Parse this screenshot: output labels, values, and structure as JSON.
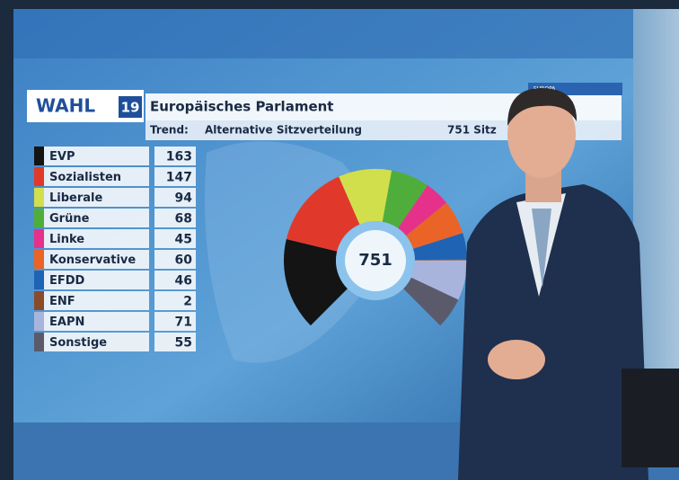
{
  "chart_data": {
    "type": "donut",
    "logo": "WAHL",
    "logo_year": "19",
    "title": "Europäisches Parlament",
    "subtitle_label": "Trend:",
    "subtitle": "Alternative Sitzverteilung",
    "seats_label": "751 Sitz",
    "total": 751,
    "corner_label": "EUROPA",
    "categories": [
      "EVP",
      "Sozialisten",
      "Liberale",
      "Grüne",
      "Linke",
      "Konservative",
      "EFDD",
      "ENF",
      "EAPN",
      "Sonstige"
    ],
    "values": [
      163,
      147,
      94,
      68,
      45,
      60,
      46,
      2,
      71,
      55
    ],
    "colors": [
      "#141414",
      "#e0392b",
      "#d2df4c",
      "#4fae3b",
      "#e6318b",
      "#ea6428",
      "#1f63b5",
      "#8a4b2b",
      "#a9b4dd",
      "#5b5a6b"
    ]
  }
}
